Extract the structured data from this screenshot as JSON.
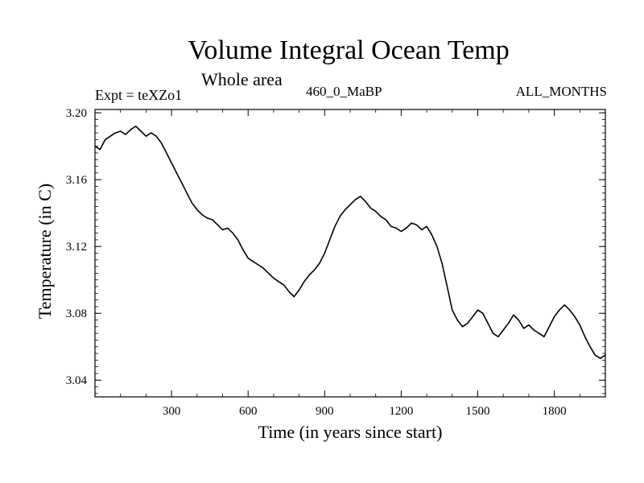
{
  "chart_data": {
    "type": "line",
    "title": "Volume Integral Ocean Temp",
    "subtitle": "Whole area",
    "experiment": "Expt = teXZo1",
    "period": "460_0_MaBP",
    "months": "ALL_MONTHS",
    "xlabel": "Time (in years since start)",
    "ylabel": "Temperature (in C)",
    "xlim": [
      0,
      2000
    ],
    "ylim": [
      3.03,
      3.202
    ],
    "xticks": [
      300,
      600,
      900,
      1200,
      1500,
      1800
    ],
    "xtick_labels": [
      "300",
      "600",
      "900",
      "1200",
      "1500",
      "1800"
    ],
    "yticks": [
      3.04,
      3.08,
      3.12,
      3.16,
      3.2
    ],
    "ytick_labels": [
      "3.04",
      "3.08",
      "3.12",
      "3.16",
      "3.20"
    ],
    "grid": false,
    "series": [
      {
        "name": "Volume Integral Ocean Temp",
        "color": "#000000",
        "x": [
          0,
          20,
          40,
          60,
          80,
          100,
          120,
          140,
          160,
          180,
          200,
          220,
          240,
          260,
          280,
          300,
          320,
          340,
          360,
          380,
          400,
          420,
          440,
          460,
          480,
          500,
          520,
          540,
          560,
          580,
          600,
          620,
          640,
          660,
          680,
          700,
          720,
          740,
          760,
          780,
          800,
          820,
          840,
          860,
          880,
          900,
          920,
          940,
          960,
          980,
          1000,
          1020,
          1040,
          1060,
          1080,
          1100,
          1120,
          1140,
          1160,
          1180,
          1200,
          1220,
          1240,
          1260,
          1280,
          1300,
          1320,
          1340,
          1360,
          1380,
          1400,
          1420,
          1440,
          1460,
          1480,
          1500,
          1520,
          1540,
          1560,
          1580,
          1600,
          1620,
          1640,
          1660,
          1680,
          1700,
          1720,
          1740,
          1760,
          1780,
          1800,
          1820,
          1840,
          1860,
          1880,
          1900,
          1920,
          1940,
          1960,
          1980,
          2000
        ],
        "values": [
          3.18,
          3.178,
          3.184,
          3.186,
          3.188,
          3.189,
          3.187,
          3.19,
          3.192,
          3.189,
          3.186,
          3.188,
          3.186,
          3.182,
          3.176,
          3.17,
          3.164,
          3.158,
          3.152,
          3.146,
          3.142,
          3.139,
          3.137,
          3.136,
          3.133,
          3.13,
          3.131,
          3.128,
          3.124,
          3.118,
          3.113,
          3.111,
          3.109,
          3.107,
          3.104,
          3.101,
          3.099,
          3.097,
          3.093,
          3.09,
          3.094,
          3.099,
          3.103,
          3.106,
          3.11,
          3.116,
          3.124,
          3.132,
          3.138,
          3.142,
          3.145,
          3.148,
          3.15,
          3.147,
          3.143,
          3.141,
          3.138,
          3.136,
          3.132,
          3.131,
          3.129,
          3.131,
          3.134,
          3.133,
          3.13,
          3.132,
          3.127,
          3.12,
          3.11,
          3.096,
          3.082,
          3.076,
          3.072,
          3.074,
          3.078,
          3.082,
          3.08,
          3.074,
          3.068,
          3.066,
          3.07,
          3.074,
          3.079,
          3.076,
          3.071,
          3.073,
          3.07,
          3.068,
          3.066,
          3.072,
          3.078,
          3.082,
          3.085,
          3.082,
          3.078,
          3.073,
          3.066,
          3.06,
          3.055,
          3.053,
          3.055
        ]
      }
    ]
  }
}
